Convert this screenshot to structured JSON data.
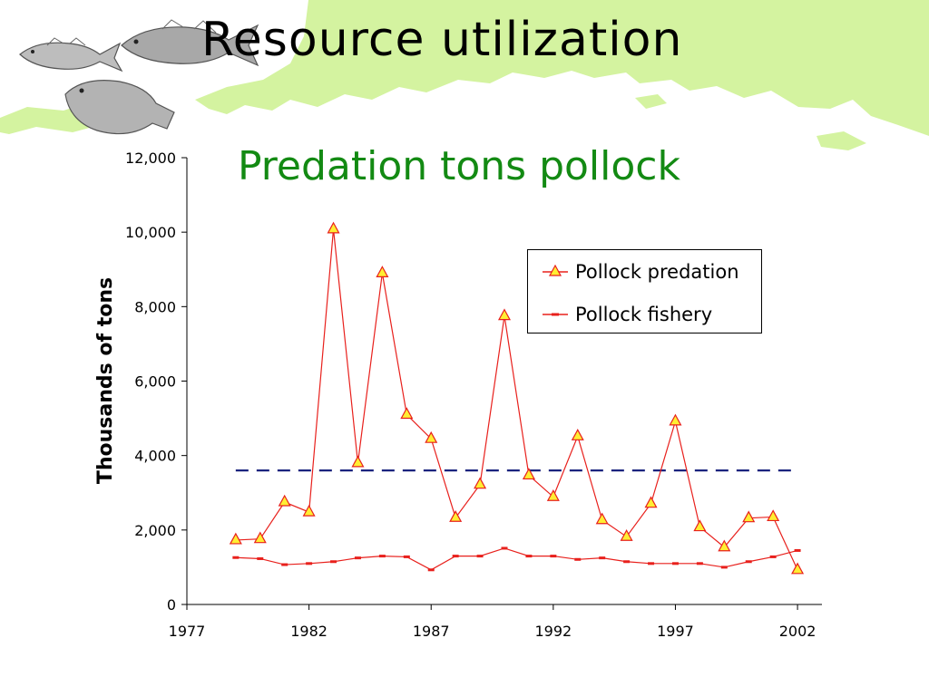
{
  "slide": {
    "title": "Resource utilization"
  },
  "colors": {
    "predation": "#e8201c",
    "marker_fill": "#ffee33",
    "fishery": "#e8201c",
    "reference_line": "#1a237e",
    "chart_title": "#138a13",
    "map_land": "#d4f3a0"
  },
  "chart_data": {
    "type": "line",
    "title": "Predation tons pollock",
    "ylabel": "Thousands of tons",
    "xlabel": "",
    "xlim": [
      1977,
      2003
    ],
    "ylim": [
      0,
      12000
    ],
    "x_ticks": [
      1977,
      1982,
      1987,
      1992,
      1997,
      2002
    ],
    "x_tick_labels": [
      "1977",
      "1982",
      "1987",
      "1992",
      "1997",
      "2002"
    ],
    "y_ticks": [
      0,
      2000,
      4000,
      6000,
      8000,
      10000,
      12000
    ],
    "y_tick_labels": [
      "0",
      "2,000",
      "4,000",
      "6,000",
      "8,000",
      "10,000",
      "12,000"
    ],
    "legend_position": "top-right",
    "x": [
      1979,
      1980,
      1981,
      1982,
      1983,
      1984,
      1985,
      1986,
      1987,
      1988,
      1989,
      1990,
      1991,
      1992,
      1993,
      1994,
      1995,
      1996,
      1997,
      1998,
      1999,
      2000,
      2001,
      2002
    ],
    "series": [
      {
        "name": "Pollock predation",
        "marker": "triangle",
        "values": [
          1730,
          1760,
          2750,
          2480,
          10080,
          3800,
          8900,
          5100,
          4450,
          2330,
          3220,
          7750,
          3470,
          2890,
          4520,
          2270,
          1820,
          2710,
          4920,
          2080,
          1540,
          2320,
          2350,
          930
        ]
      },
      {
        "name": "Pollock fishery",
        "marker": "dash",
        "values": [
          1260,
          1230,
          1070,
          1100,
          1150,
          1250,
          1300,
          1280,
          930,
          1300,
          1300,
          1510,
          1300,
          1300,
          1210,
          1250,
          1150,
          1100,
          1100,
          1100,
          1000,
          1150,
          1280,
          1450
        ]
      }
    ],
    "reference_line": {
      "y": 3600,
      "x_range": [
        1979,
        2002
      ],
      "style": "dashed"
    }
  },
  "decor": {
    "fish_icons": [
      "cod-fish-icon",
      "pollock-fish-icon",
      "flatfish-icon"
    ]
  }
}
